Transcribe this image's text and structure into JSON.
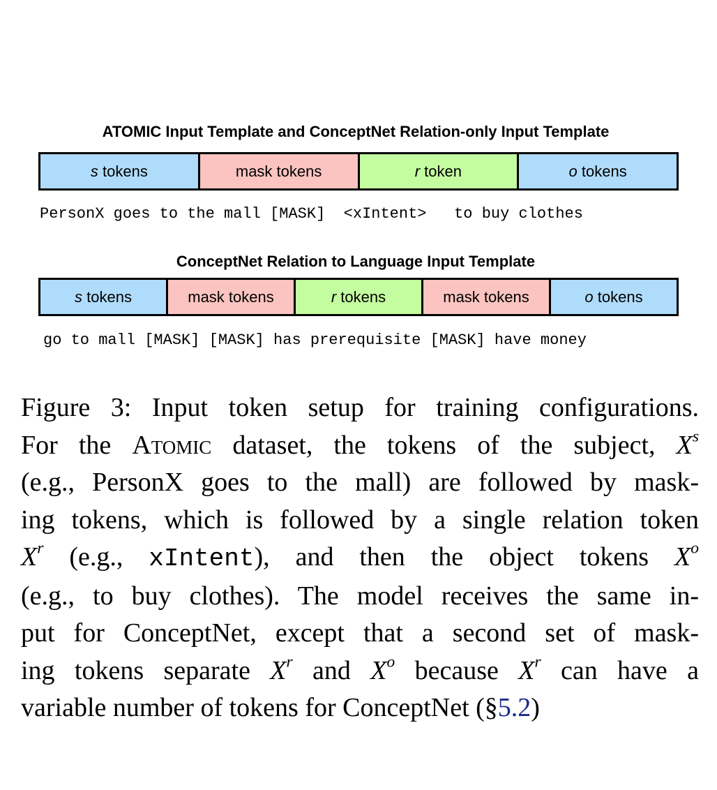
{
  "figure": {
    "template1": {
      "title": "ATOMIC Input Template and ConceptNet Relation-only Input Template",
      "segments": [
        {
          "var": "s",
          "label": " tokens",
          "color": "#b0dcfb"
        },
        {
          "var": "",
          "label": "mask tokens",
          "color": "#fbc4c0"
        },
        {
          "var": "r",
          "label": " token",
          "color": "#c4fca0"
        },
        {
          "var": "o",
          "label": " tokens",
          "color": "#b0dcfb"
        }
      ],
      "example": "PersonX goes to the mall [MASK]  <xIntent>   to buy clothes"
    },
    "template2": {
      "title": "ConceptNet Relation to Language Input Template",
      "segments": [
        {
          "var": "s",
          "label": " tokens",
          "color": "#b0dcfb"
        },
        {
          "var": "",
          "label": "mask tokens",
          "color": "#fbc4c0"
        },
        {
          "var": "r",
          "label": " tokens",
          "color": "#c4fca0"
        },
        {
          "var": "",
          "label": "mask tokens",
          "color": "#fbc4c0"
        },
        {
          "var": "o",
          "label": " tokens",
          "color": "#b0dcfb"
        }
      ],
      "example": "go to mall [MASK] [MASK] has prerequisite [MASK] have money"
    }
  },
  "caption": {
    "l1": "Figure 3: Input token setup for training configurations.",
    "l2a": "For the ",
    "l2sc": "Atomic",
    "l2b": " dataset, the tokens of the subject, ",
    "l3": "(e.g., PersonX goes to the mall) are followed by mask-",
    "l4": "ing tokens, which is followed by a single relation token",
    "l5a": " (e.g., ",
    "l5mono": "xIntent",
    "l5b": "), and then the object tokens ",
    "l6": "(e.g., to buy clothes). The model receives the same in-",
    "l7": "put for ConceptNet, except that a second set of mask-",
    "l8a": "ing tokens separate ",
    "l8b": " and ",
    "l8c": " because ",
    "l8d": " can have a",
    "l9a": "variable number of tokens for ConceptNet (§",
    "l9link": "5.2",
    "l9b": ")",
    "X": "X",
    "s": "s",
    "r": "r",
    "o": "o"
  }
}
